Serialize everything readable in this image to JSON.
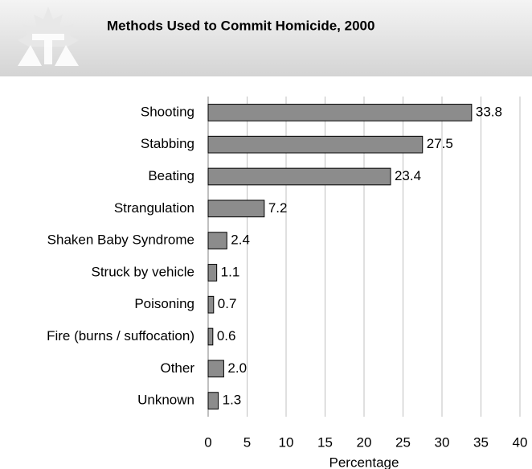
{
  "chart_data": {
    "type": "hbar",
    "title": "Methods Used to Commit Homicide, 2000",
    "categories": [
      "Shooting",
      "Stabbing",
      "Beating",
      "Strangulation",
      "Shaken Baby Syndrome",
      "Struck by vehicle",
      "Poisoning",
      "Fire (burns / suffocation)",
      "Other",
      "Unknown"
    ],
    "values": [
      33.8,
      27.5,
      23.4,
      7.2,
      2.4,
      1.1,
      0.7,
      0.6,
      2.0,
      1.3
    ],
    "value_labels": [
      "33.8",
      "27.5",
      "23.4",
      "7.2",
      "2.4",
      "1.1",
      "0.7",
      "0.6",
      "2.0",
      "1.3"
    ],
    "color": "#8c8c8c",
    "xlabel": "Percentage",
    "xlim": [
      0,
      40
    ],
    "xticks": [
      0,
      5,
      10,
      15,
      20,
      25,
      30,
      35,
      40
    ],
    "grid": true
  }
}
